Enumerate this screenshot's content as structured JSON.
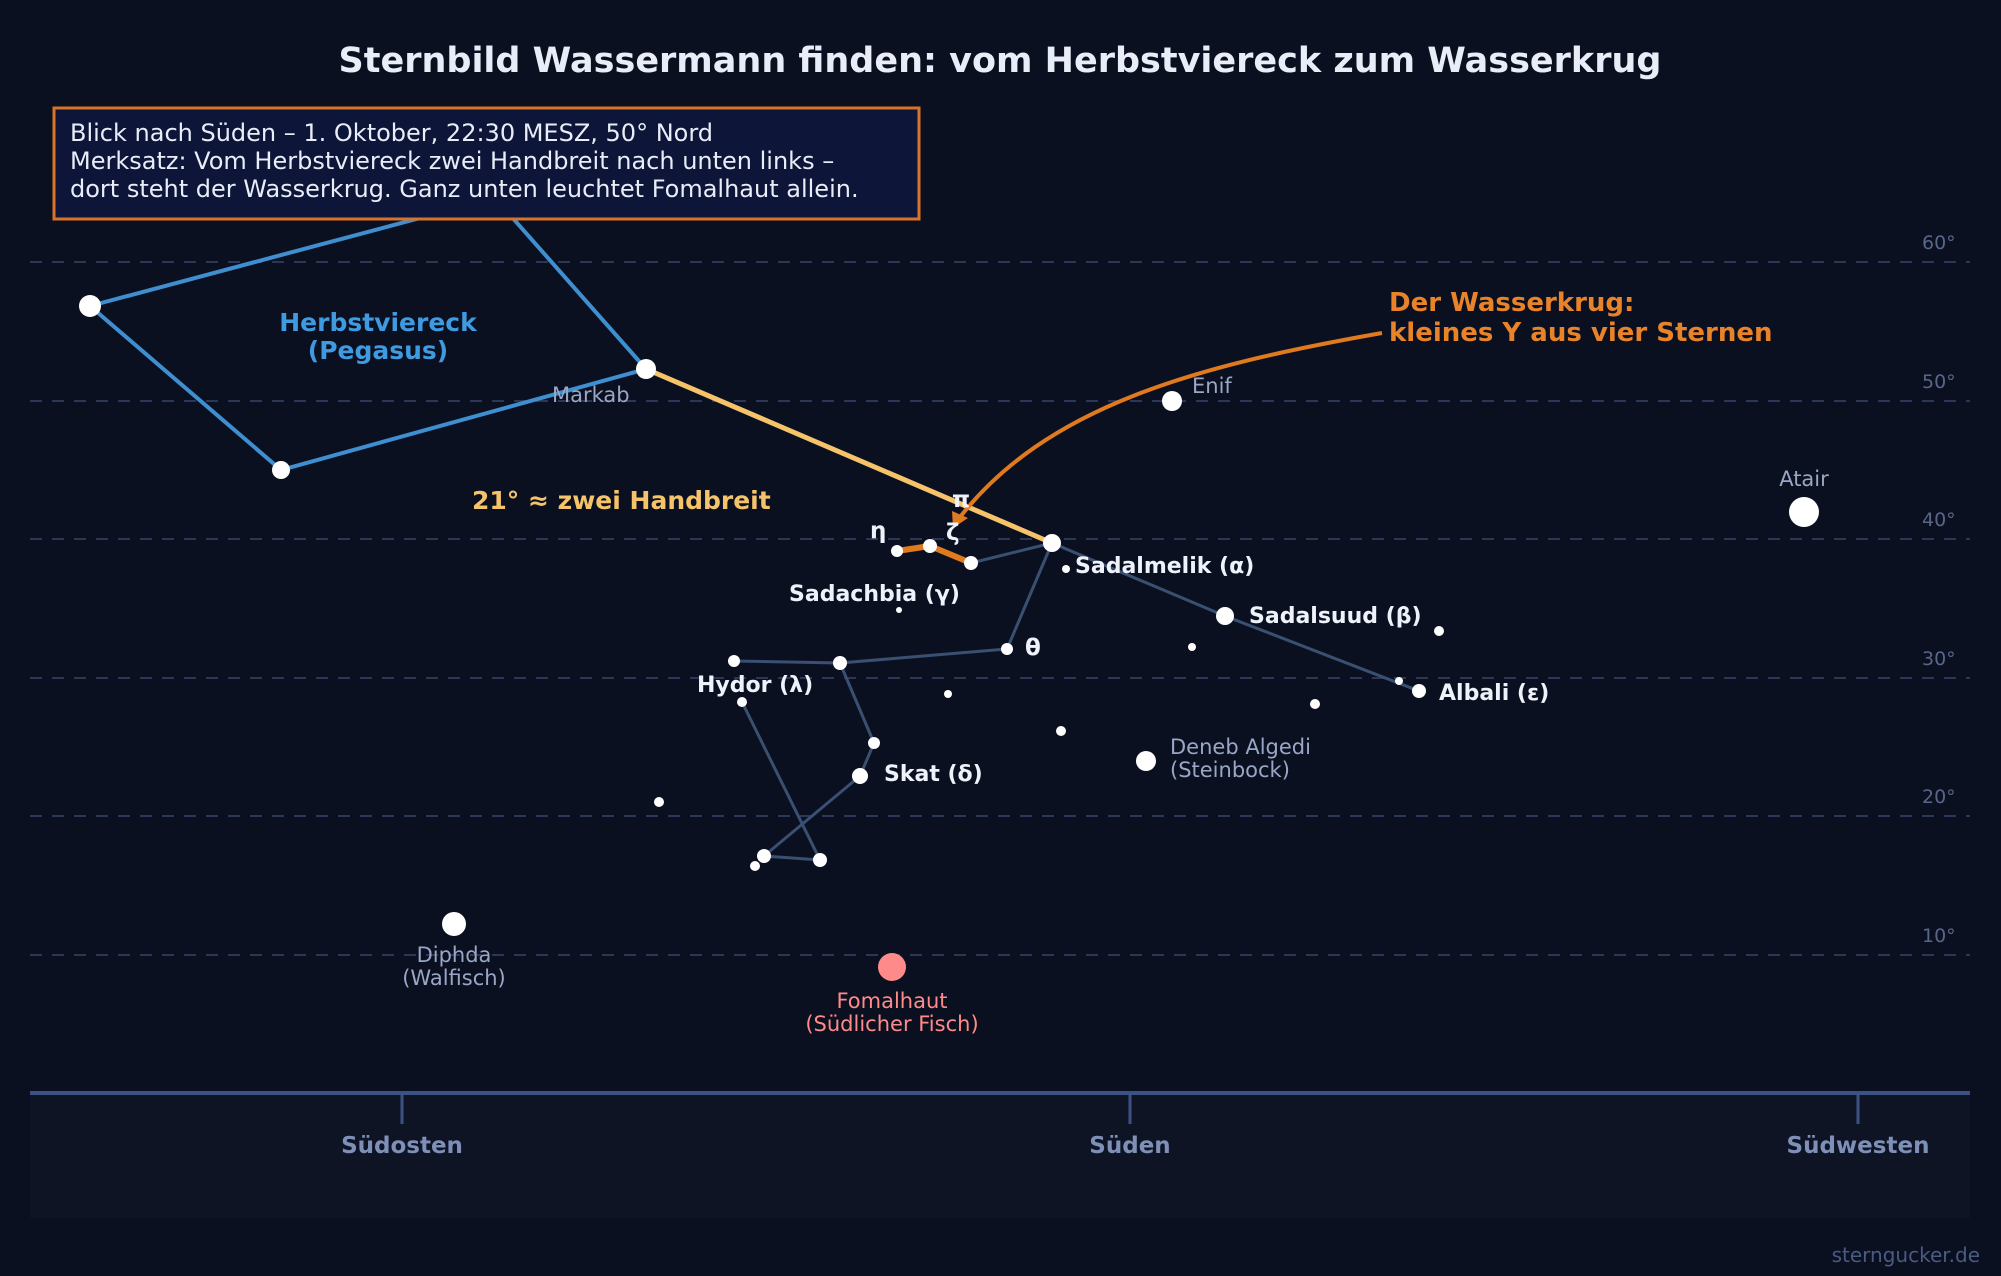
{
  "title": "Sternbild Wassermann finden: vom Herbstviereck zum Wasserkrug",
  "info_box": {
    "lines": [
      "Blick nach Süden – 1. Oktober, 22:30 MESZ, 50° Nord",
      "Merksatz: Vom Herbstviereck zwei Handbreit nach unten links –",
      "dort steht der Wasserkrug. Ganz unten leuchtet Fomalhaut allein."
    ]
  },
  "altitude_labels": [
    "60°",
    "50°",
    "40°",
    "30°",
    "20°",
    "10°"
  ],
  "direction_labels": {
    "southeast": "Südosten",
    "south": "Süden",
    "southwest": "Südwesten"
  },
  "pegasus_label": [
    "Herbstviereck",
    "(Pegasus)"
  ],
  "pointer_label": "21°  ≈ zwei Handbreit",
  "water_jar_annotation": [
    "Der Wasserkrug:",
    "kleines Y aus vier Sternen"
  ],
  "star_labels": {
    "markab": "Markab",
    "enif": "Enif",
    "atair": "Atair",
    "pi": "π",
    "eta": "η",
    "zeta": "ζ",
    "sadalmelik": "Sadalmelik (α)",
    "sadachbia": "Sadachbia (γ)",
    "sadalsuud": "Sadalsuud (β)",
    "theta": "θ",
    "albali": "Albali (ε)",
    "hydor": "Hydor (λ)",
    "skat": "Skat (δ)",
    "deneb_algedi": [
      "Deneb Algedi",
      "(Steinbock)"
    ],
    "diphda": [
      "Diphda",
      "(Walfisch)"
    ],
    "fomalhaut": [
      "Fomalhaut",
      "(Südlicher Fisch)"
    ]
  },
  "credit": "sterngucker.de",
  "colors": {
    "background": "#0b1020",
    "pegasus": "#3f8fd0",
    "water_jar": "#e07a1f",
    "pointer": "#f5c46a",
    "fomalhaut": "#ff8a8a"
  }
}
